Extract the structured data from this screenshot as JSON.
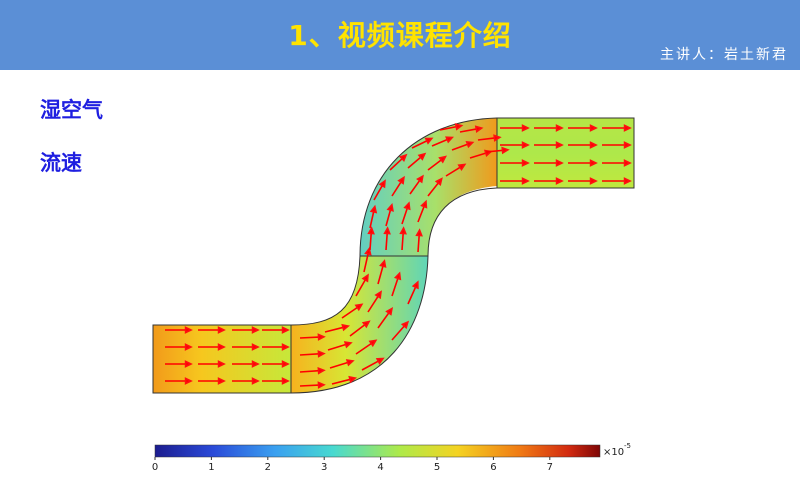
{
  "header": {
    "title": "1、视频课程介绍",
    "presenter": "主讲人：岩土新君",
    "accent_color": "#5b8fd6",
    "title_color": "#ffe300"
  },
  "labels": {
    "line1": "湿空气",
    "line2": "流速"
  },
  "colorbar": {
    "ticks": [
      "0",
      "1",
      "2",
      "3",
      "4",
      "5",
      "6",
      "7"
    ],
    "multiplier": "×10",
    "exponent": "-5",
    "colormap": "rainbow (blue-cyan-green-yellow-red)"
  },
  "plot": {
    "type": "velocity field in S-shaped pipe",
    "arrow_color": "#ff0000"
  }
}
